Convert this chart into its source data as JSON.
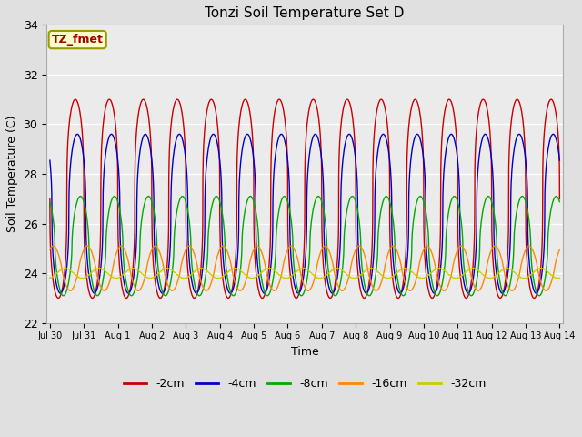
{
  "title": "Tonzi Soil Temperature Set D",
  "xlabel": "Time",
  "ylabel": "Soil Temperature (C)",
  "ylim": [
    22,
    34
  ],
  "background_color": "#e0e0e0",
  "plot_bg_color": "#ebebeb",
  "label_box_text": "TZ_fmet",
  "label_box_bg": "#ffffcc",
  "label_box_edge": "#999900",
  "label_box_text_color": "#aa0000",
  "series": [
    {
      "label": "-2cm",
      "color": "#cc0000",
      "amp": 4.0,
      "mean": 27.0,
      "phase": 0.0,
      "sharpness": 3.0,
      "min_val": 23.0
    },
    {
      "label": "-4cm",
      "color": "#0000cc",
      "amp": 3.2,
      "mean": 26.4,
      "phase": 0.06,
      "sharpness": 2.5,
      "min_val": 23.0
    },
    {
      "label": "-8cm",
      "color": "#00aa00",
      "amp": 2.0,
      "mean": 25.1,
      "phase": 0.15,
      "sharpness": 1.8,
      "min_val": 23.0
    },
    {
      "label": "-16cm",
      "color": "#ff8800",
      "amp": 0.9,
      "mean": 24.2,
      "phase": 0.35,
      "sharpness": 1.2,
      "min_val": 23.3
    },
    {
      "label": "-32cm",
      "color": "#cccc00",
      "amp": 0.2,
      "mean": 24.0,
      "phase": 0.7,
      "sharpness": 1.0,
      "min_val": 23.8
    }
  ],
  "xtick_labels": [
    "Jul 30",
    "Jul 31",
    "Aug 1",
    "Aug 2",
    "Aug 3",
    "Aug 4",
    "Aug 5",
    "Aug 6",
    "Aug 7",
    "Aug 8",
    "Aug 9",
    "Aug 10",
    "Aug 11",
    "Aug 12",
    "Aug 13",
    "Aug 14"
  ],
  "ytick_values": [
    22,
    24,
    26,
    28,
    30,
    32,
    34
  ],
  "n_points": 3000,
  "total_days": 15.0
}
